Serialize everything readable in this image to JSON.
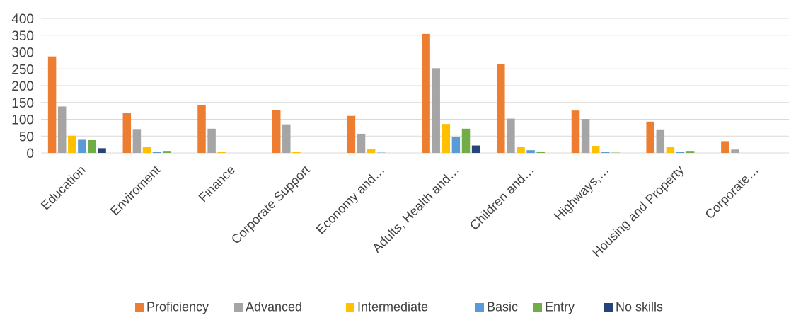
{
  "chart_data": {
    "type": "bar",
    "title": "",
    "xlabel": "",
    "ylabel": "",
    "ylim": [
      0,
      400
    ],
    "yticks": [
      0,
      50,
      100,
      150,
      200,
      250,
      300,
      350,
      400
    ],
    "grid": true,
    "legend_position": "bottom",
    "categories": [
      "Education",
      "Enviroment",
      "Finance",
      "Corporate Support",
      "Economy and…",
      "Adults, Health and…",
      "Children and…",
      "Highways,…",
      "Housing and Property",
      "Corporate…"
    ],
    "series": [
      {
        "name": "Proficiency",
        "color": "#ED7D31",
        "values": [
          287,
          120,
          143,
          128,
          110,
          354,
          265,
          126,
          93,
          35
        ]
      },
      {
        "name": "Advanced",
        "color": "#A5A5A5",
        "values": [
          138,
          71,
          72,
          85,
          57,
          252,
          102,
          101,
          70,
          10
        ]
      },
      {
        "name": "Intermediate",
        "color": "#FFC000",
        "values": [
          51,
          19,
          4,
          4,
          11,
          86,
          18,
          21,
          18,
          0
        ]
      },
      {
        "name": "Basic",
        "color": "#5B9BD5",
        "values": [
          39,
          3,
          0,
          0,
          1,
          48,
          8,
          3,
          3,
          0
        ]
      },
      {
        "name": "Entry",
        "color": "#70AD47",
        "values": [
          38,
          6,
          0,
          0,
          0,
          72,
          3,
          1,
          6,
          0
        ]
      },
      {
        "name": "No skills",
        "color": "#264478",
        "values": [
          14,
          0,
          0,
          0,
          0,
          22,
          0,
          0,
          0,
          0
        ]
      }
    ]
  }
}
